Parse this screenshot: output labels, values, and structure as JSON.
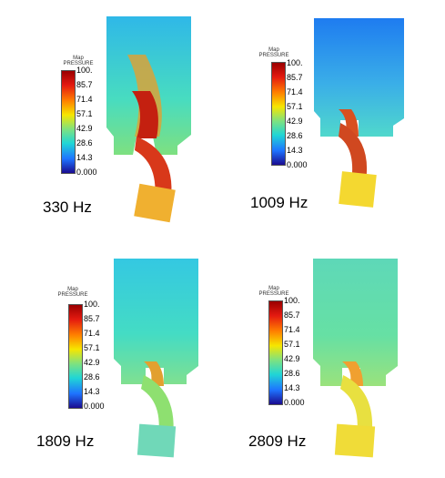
{
  "colormap": {
    "title_line1": "Map",
    "title_line2": "PRESSURE",
    "ticks": [
      "100.",
      "85.7",
      "71.4",
      "57.1",
      "42.9",
      "28.6",
      "14.3",
      "0.000"
    ],
    "colors": [
      "#9a0000",
      "#e41a10",
      "#ff7f00",
      "#f6e600",
      "#7fe27f",
      "#20d6d6",
      "#1e74ff",
      "#1a0b90"
    ]
  },
  "panels": [
    {
      "freq_label": "330 Hz",
      "chamber_color": "#35d2d2",
      "jet_color": "#d8381a",
      "box_color": "#f0b030"
    },
    {
      "freq_label": "1009 Hz",
      "chamber_color": "#2c8ef0",
      "jet_color": "#d04820",
      "box_color": "#f4d830"
    },
    {
      "freq_label": "1809 Hz",
      "chamber_color": "#40dcc4",
      "jet_color": "#8ee070",
      "box_color": "#70d8b8"
    },
    {
      "freq_label": "2809 Hz",
      "chamber_color": "#62e0a6",
      "jet_color": "#e8e040",
      "box_color": "#f0dc38"
    }
  ]
}
